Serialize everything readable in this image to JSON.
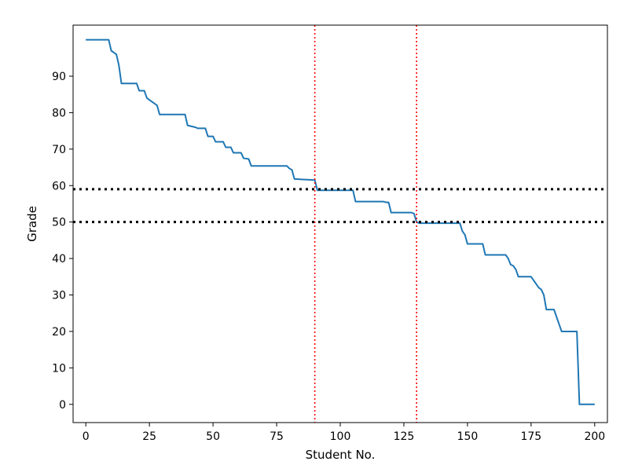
{
  "chart_data": {
    "type": "line",
    "title": "",
    "xlabel": "Student No.",
    "ylabel": "Grade",
    "xlim": [
      -5,
      205
    ],
    "ylim": [
      -5,
      104
    ],
    "grid": false,
    "xticks": [
      0,
      25,
      50,
      75,
      100,
      125,
      150,
      175,
      200
    ],
    "yticks": [
      0,
      10,
      20,
      30,
      40,
      50,
      60,
      70,
      80,
      90
    ],
    "series": [
      {
        "color": "#1f77b4",
        "x": [
          0,
          9,
          10,
          12,
          13,
          14,
          20,
          21,
          23,
          24,
          27,
          28,
          29,
          39,
          40,
          43,
          44,
          47,
          48,
          50,
          51,
          54,
          55,
          57,
          58,
          61,
          62,
          64,
          65,
          79,
          80,
          81,
          82,
          90,
          91,
          105,
          106,
          117,
          118,
          119,
          120,
          128,
          129,
          130,
          131,
          147,
          148,
          149,
          150,
          156,
          157,
          165,
          166,
          167,
          168,
          169,
          170,
          175,
          176,
          178,
          179,
          180,
          181,
          184,
          185,
          186,
          187,
          193,
          194,
          200
        ],
        "y": [
          100,
          100,
          97,
          96,
          93,
          88,
          88,
          86,
          86,
          84,
          82.5,
          82,
          79.5,
          79.5,
          76.5,
          76,
          75.7,
          75.7,
          73.5,
          73.5,
          72,
          72,
          70.5,
          70.5,
          69,
          69,
          67.5,
          67.3,
          65.4,
          65.4,
          64.7,
          64.3,
          61.8,
          61.5,
          58.7,
          58.7,
          55.6,
          55.6,
          55.4,
          55.4,
          52.6,
          52.6,
          52.3,
          50,
          49.7,
          49.7,
          47.5,
          46.5,
          44,
          44,
          41,
          41,
          40,
          38.3,
          38,
          37,
          35,
          35,
          34,
          32,
          31.5,
          30,
          26,
          26,
          24,
          22,
          20,
          20,
          0,
          0
        ]
      }
    ],
    "hlines": [
      {
        "y": 59,
        "color": "#000000",
        "style": "dotted"
      },
      {
        "y": 50,
        "color": "#000000",
        "style": "dotted"
      }
    ],
    "vlines": [
      {
        "x": 90,
        "color": "#ff0000",
        "style": "dotted"
      },
      {
        "x": 130,
        "color": "#ff0000",
        "style": "dotted"
      }
    ]
  }
}
